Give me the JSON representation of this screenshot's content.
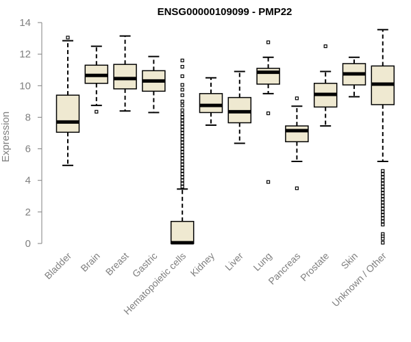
{
  "chart_data": {
    "type": "box",
    "title": "ENSG00000109099 - PMP22",
    "xlabel": "",
    "ylabel": "Expression",
    "ylim": [
      0,
      14
    ],
    "yticks": [
      0,
      2,
      4,
      6,
      8,
      10,
      12,
      14
    ],
    "categories": [
      "Bladder",
      "Brain",
      "Breast",
      "Gastric",
      "Hematopoietic cells",
      "Kidney",
      "Liver",
      "Lung",
      "Pancreas",
      "Prostate",
      "Skin",
      "Unknown / Other"
    ],
    "box_fill": "#efe9d1",
    "boxes": [
      {
        "whislo": 4.95,
        "q1": 7.05,
        "med": 7.7,
        "q3": 9.4,
        "whishi": 12.85,
        "outliers": [
          13.05
        ]
      },
      {
        "whislo": 8.75,
        "q1": 10.15,
        "med": 10.65,
        "q3": 11.3,
        "whishi": 12.5,
        "outliers": [
          8.35
        ]
      },
      {
        "whislo": 8.4,
        "q1": 9.8,
        "med": 10.45,
        "q3": 11.35,
        "whishi": 13.15,
        "outliers": []
      },
      {
        "whislo": 8.3,
        "q1": 9.65,
        "med": 10.3,
        "q3": 10.95,
        "whishi": 11.85,
        "outliers": []
      },
      {
        "whislo": 0.0,
        "q1": 0.0,
        "med": 0.05,
        "q3": 1.4,
        "whishi": 3.45,
        "outliers": [
          3.6,
          3.8,
          4.0,
          4.2,
          4.4,
          4.6,
          4.8,
          5.0,
          5.2,
          5.4,
          5.6,
          5.8,
          6.0,
          6.2,
          6.4,
          6.6,
          6.8,
          7.0,
          7.2,
          7.4,
          7.6,
          7.8,
          8.0,
          8.2,
          8.45,
          8.75,
          9.0,
          9.4,
          9.75,
          10.05,
          10.6,
          11.2,
          11.6
        ]
      },
      {
        "whislo": 7.5,
        "q1": 8.3,
        "med": 8.75,
        "q3": 9.5,
        "whishi": 10.5,
        "outliers": []
      },
      {
        "whislo": 6.35,
        "q1": 7.65,
        "med": 8.35,
        "q3": 9.25,
        "whishi": 10.9,
        "outliers": []
      },
      {
        "whislo": 9.5,
        "q1": 10.1,
        "med": 10.85,
        "q3": 11.1,
        "whishi": 11.8,
        "outliers": [
          12.75,
          8.25,
          3.9
        ]
      },
      {
        "whislo": 5.2,
        "q1": 6.45,
        "med": 7.15,
        "q3": 7.45,
        "whishi": 8.7,
        "outliers": [
          9.2,
          3.5
        ]
      },
      {
        "whislo": 7.45,
        "q1": 8.65,
        "med": 9.45,
        "q3": 10.15,
        "whishi": 10.9,
        "outliers": [
          12.5
        ]
      },
      {
        "whislo": 9.3,
        "q1": 10.05,
        "med": 10.75,
        "q3": 11.4,
        "whishi": 11.8,
        "outliers": []
      },
      {
        "whislo": 5.2,
        "q1": 8.8,
        "med": 10.1,
        "q3": 11.25,
        "whishi": 13.55,
        "outliers": [
          4.6,
          4.4,
          4.2,
          4.0,
          3.8,
          3.6,
          3.4,
          3.2,
          3.0,
          2.8,
          2.6,
          2.4,
          2.2,
          2.0,
          1.8,
          1.6,
          1.4,
          1.2,
          0.6,
          0.45,
          0.3,
          0.05
        ]
      }
    ]
  }
}
